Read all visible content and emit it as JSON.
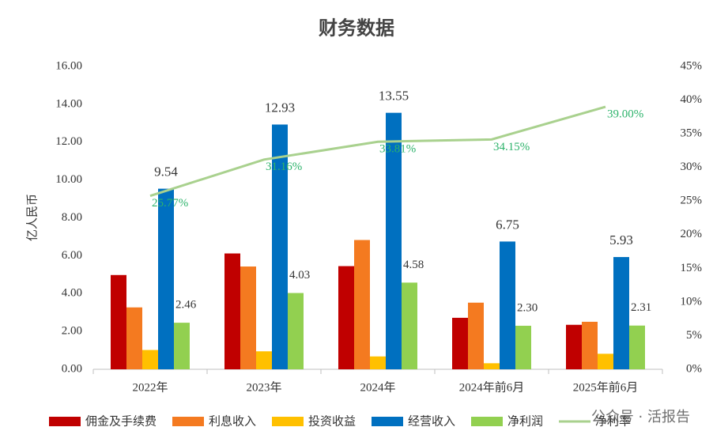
{
  "chart_data": {
    "type": "bar",
    "title": "财务数据",
    "y_label": "亿人民币",
    "categories": [
      "2022年",
      "2023年",
      "2024年",
      "2024年前6月",
      "2025年前6月"
    ],
    "series": [
      {
        "name": "佣金及手续费",
        "color": "#c00000",
        "values": [
          4.98,
          6.12,
          5.45,
          2.72,
          2.35
        ]
      },
      {
        "name": "利息收入",
        "color": "#f47a20",
        "values": [
          3.27,
          5.43,
          6.83,
          3.52,
          2.51
        ]
      },
      {
        "name": "投资收益",
        "color": "#ffc000",
        "values": [
          1.02,
          0.95,
          0.68,
          0.32,
          0.82
        ]
      },
      {
        "name": "经营收入",
        "color": "#0070c0",
        "values": [
          9.54,
          12.93,
          13.55,
          6.75,
          5.93
        ],
        "value_labels": [
          "9.54",
          "12.93",
          "13.55",
          "6.75",
          "5.93"
        ]
      },
      {
        "name": "净利润",
        "color": "#92d050",
        "values": [
          2.46,
          4.03,
          4.58,
          2.3,
          2.31
        ],
        "value_labels": [
          "2.46",
          "4.03",
          "4.58",
          "2.30",
          "2.31"
        ]
      },
      {
        "name": "净利率",
        "type": "line",
        "axis": "y2",
        "color": "#a9d18e",
        "values": [
          25.77,
          31.16,
          33.81,
          34.15,
          39.0
        ],
        "value_labels": [
          "25.77%",
          "31.16%",
          "33.81%",
          "34.15%",
          "39.00%"
        ]
      }
    ],
    "ylim": [
      0,
      16
    ],
    "yticks": [
      {
        "value": 0,
        "label": "0.00"
      },
      {
        "value": 2,
        "label": "2.00"
      },
      {
        "value": 4,
        "label": "4.00"
      },
      {
        "value": 6,
        "label": "6.00"
      },
      {
        "value": 8,
        "label": "8.00"
      },
      {
        "value": 10,
        "label": "10.00"
      },
      {
        "value": 12,
        "label": "12.00"
      },
      {
        "value": 14,
        "label": "14.00"
      },
      {
        "value": 16,
        "label": "16.00"
      }
    ],
    "y2lim": [
      0,
      45
    ],
    "y2ticks": [
      {
        "value": 0,
        "label": "0%"
      },
      {
        "value": 5,
        "label": "5%"
      },
      {
        "value": 10,
        "label": "10%"
      },
      {
        "value": 15,
        "label": "15%"
      },
      {
        "value": 20,
        "label": "20%"
      },
      {
        "value": 25,
        "label": "25%"
      },
      {
        "value": 30,
        "label": "30%"
      },
      {
        "value": 35,
        "label": "35%"
      },
      {
        "value": 40,
        "label": "40%"
      },
      {
        "value": 45,
        "label": "45%"
      }
    ],
    "watermark": "公众号 · 活报告"
  }
}
